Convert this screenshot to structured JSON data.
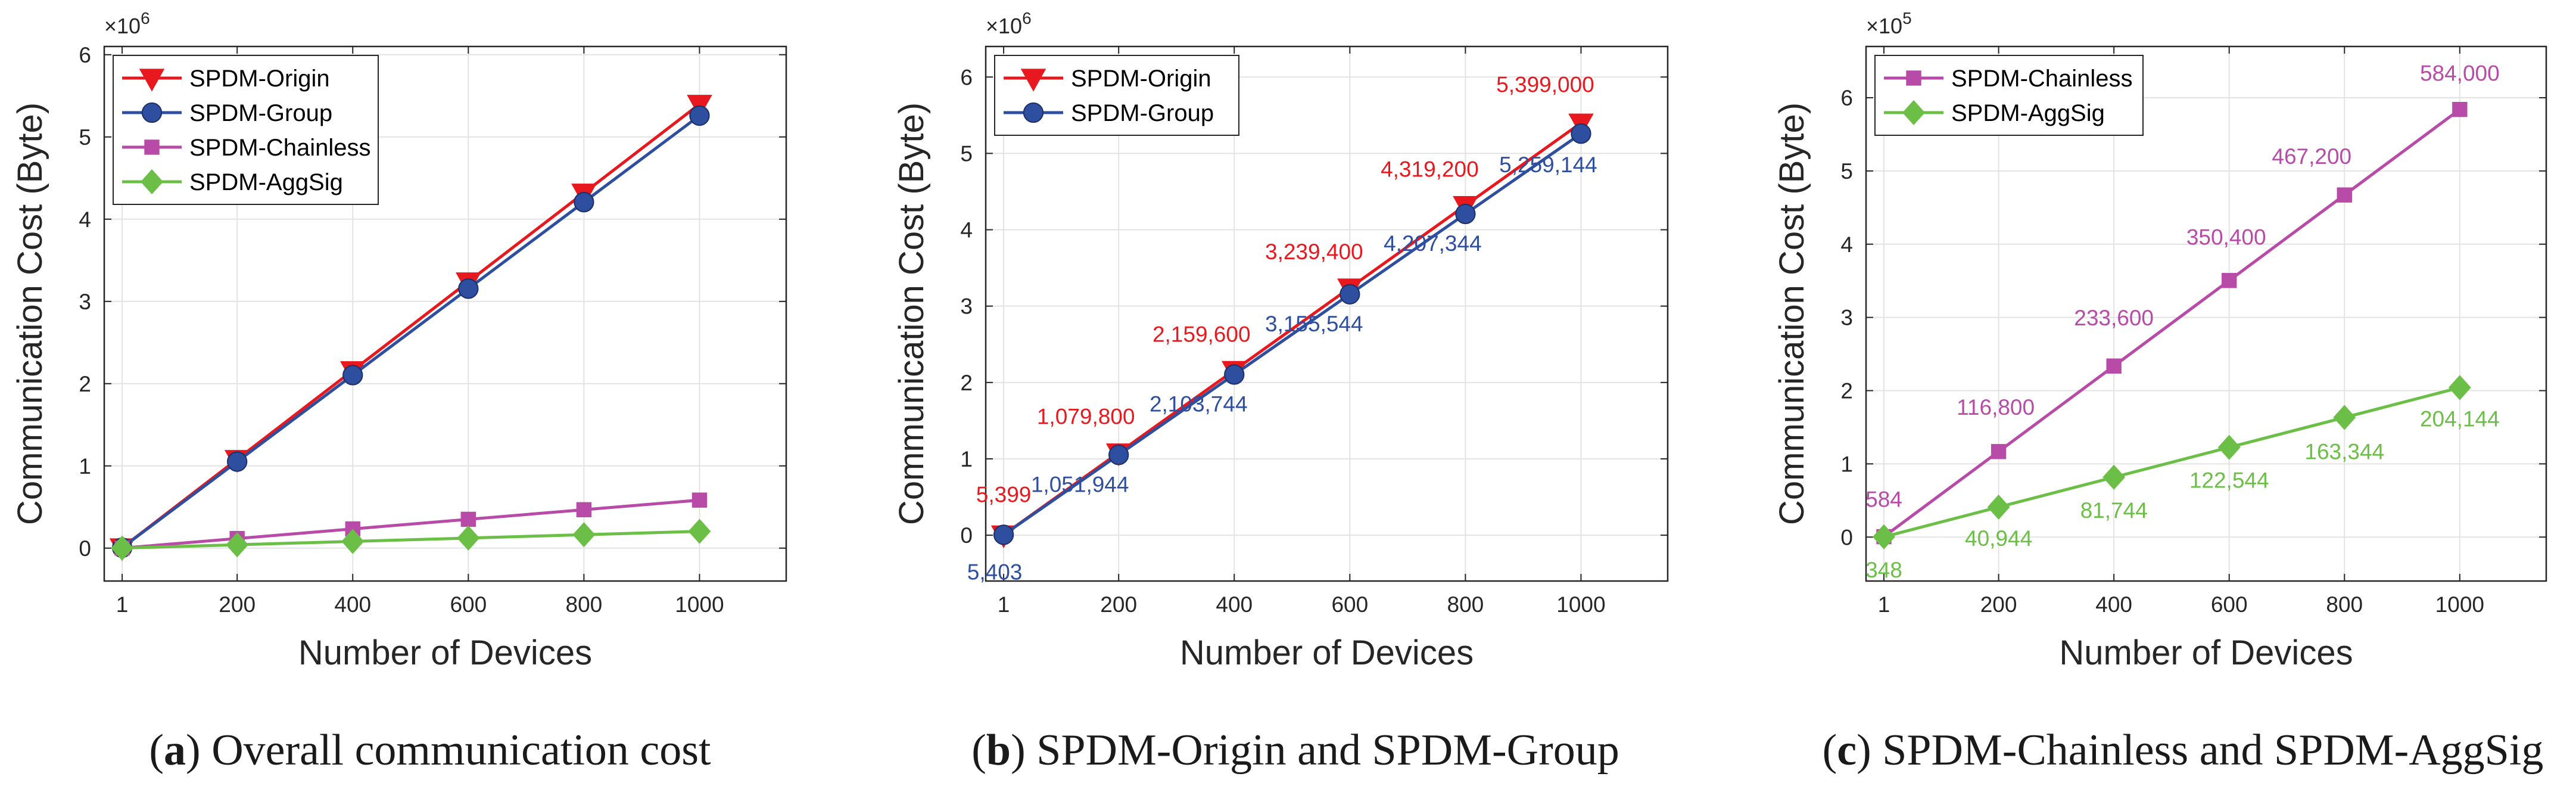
{
  "colors": {
    "origin": "#e8191e",
    "group": "#2e4ea0",
    "chainless": "#b84aa8",
    "aggsig": "#6cbf46",
    "grid": "#e3e3e3",
    "axis": "#262626"
  },
  "captions": [
    {
      "letter": "a",
      "text": "Overall communication cost"
    },
    {
      "letter": "b",
      "text": "SPDM-Origin and SPDM-Group"
    },
    {
      "letter": "c",
      "text": "SPDM-Chainless and SPDM-AggSig"
    }
  ],
  "chart_data": [
    {
      "type": "line",
      "xlabel": "Number of Devices",
      "ylabel": "Communication Cost (Byte)",
      "exponent_label": "×10",
      "exponent": "6",
      "x": [
        1,
        200,
        400,
        600,
        800,
        1000
      ],
      "x_tick_labels": [
        "1",
        "200",
        "400",
        "600",
        "800",
        "1000"
      ],
      "xlim": [
        -30,
        1150
      ],
      "ylim": [
        -0.4,
        6.1
      ],
      "y_ticks": [
        0,
        1,
        2,
        3,
        4,
        5,
        6
      ],
      "y_tick_labels": [
        "0",
        "1",
        "2",
        "3",
        "4",
        "5",
        "6"
      ],
      "legend_position": "top-left",
      "grid": true,
      "series": [
        {
          "name": "SPDM-Origin",
          "color_key": "origin",
          "marker": "triangle-down",
          "values": [
            0.005399,
            1.0798,
            2.1596,
            3.2394,
            4.3192,
            5.399
          ]
        },
        {
          "name": "SPDM-Group",
          "color_key": "group",
          "marker": "circle",
          "values": [
            0.005403,
            1.051944,
            2.103744,
            3.155544,
            4.207344,
            5.259144
          ]
        },
        {
          "name": "SPDM-Chainless",
          "color_key": "chainless",
          "marker": "square",
          "values": [
            0.000584,
            0.1168,
            0.2336,
            0.3504,
            0.4672,
            0.584
          ]
        },
        {
          "name": "SPDM-AggSig",
          "color_key": "aggsig",
          "marker": "diamond",
          "values": [
            0.000348,
            0.040944,
            0.081744,
            0.122544,
            0.163344,
            0.204144
          ]
        }
      ]
    },
    {
      "type": "line",
      "xlabel": "Number of Devices",
      "ylabel": "Communication Cost (Byte)",
      "exponent_label": "×10",
      "exponent": "6",
      "x": [
        1,
        200,
        400,
        600,
        800,
        1000
      ],
      "x_tick_labels": [
        "1",
        "200",
        "400",
        "600",
        "800",
        "1000"
      ],
      "xlim": [
        -30,
        1150
      ],
      "ylim": [
        -0.6,
        6.4
      ],
      "y_ticks": [
        0,
        1,
        2,
        3,
        4,
        5,
        6
      ],
      "y_tick_labels": [
        "0",
        "1",
        "2",
        "3",
        "4",
        "5",
        "6"
      ],
      "legend_position": "top-left",
      "grid": true,
      "series": [
        {
          "name": "SPDM-Origin",
          "color_key": "origin",
          "marker": "triangle-down",
          "values": [
            0.005399,
            1.0798,
            2.1596,
            3.2394,
            4.3192,
            5.399
          ],
          "labels": [
            "5,399",
            "1,079,800",
            "2,159,600",
            "3,239,400",
            "4,319,200",
            "5,399,000"
          ],
          "label_side": "above"
        },
        {
          "name": "SPDM-Group",
          "color_key": "group",
          "marker": "circle",
          "values": [
            0.005403,
            1.051944,
            2.103744,
            3.155544,
            4.207344,
            5.259144
          ],
          "labels": [
            "5,403",
            "1,051,944",
            "2,103,744",
            "3,155,544",
            "4,207,344",
            "5,259,144"
          ],
          "label_side": "below"
        }
      ]
    },
    {
      "type": "line",
      "xlabel": "Number of Devices",
      "ylabel": "Communication Cost (Byte)",
      "exponent_label": "×10",
      "exponent": "5",
      "x": [
        1,
        200,
        400,
        600,
        800,
        1000
      ],
      "x_tick_labels": [
        "1",
        "200",
        "400",
        "600",
        "800",
        "1000"
      ],
      "xlim": [
        -30,
        1150
      ],
      "ylim": [
        -0.6,
        6.7
      ],
      "y_ticks": [
        0,
        1,
        2,
        3,
        4,
        5,
        6
      ],
      "y_tick_labels": [
        "0",
        "1",
        "2",
        "3",
        "4",
        "5",
        "6"
      ],
      "legend_position": "top-left",
      "grid": true,
      "series": [
        {
          "name": "SPDM-Chainless",
          "color_key": "chainless",
          "marker": "square",
          "values": [
            0.00584,
            1.168,
            2.336,
            3.504,
            4.672,
            5.84
          ],
          "labels": [
            "584",
            "116,800",
            "233,600",
            "350,400",
            "467,200",
            "584,000"
          ],
          "label_side": "above"
        },
        {
          "name": "SPDM-AggSig",
          "color_key": "aggsig",
          "marker": "diamond",
          "values": [
            0.00348,
            0.40944,
            0.81744,
            1.22544,
            1.63344,
            2.04144
          ],
          "labels": [
            "348",
            "40,944",
            "81,744",
            "122,544",
            "163,344",
            "204,144"
          ],
          "label_side": "below"
        }
      ]
    }
  ]
}
